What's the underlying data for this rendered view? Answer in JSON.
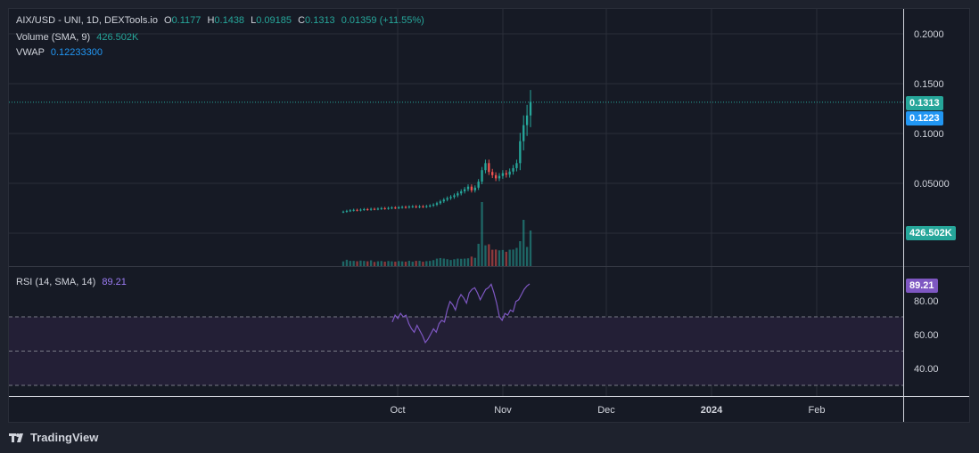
{
  "legend": {
    "symbol": "AIX/USD - UNI, 1D, DEXTools.io",
    "o_label": "O",
    "o_value": "0.1177",
    "h_label": "H",
    "h_value": "0.1438",
    "l_label": "L",
    "l_value": "0.09185",
    "c_label": "C",
    "c_value": "0.1313",
    "change": "0.01359 (+11.55%)",
    "volume_label": "Volume (SMA, 9)",
    "volume_value": "426.502K",
    "vwap_label": "VWAP",
    "vwap_value": "0.12233300",
    "rsi_label": "RSI (14, SMA, 14)",
    "rsi_value": "89.21"
  },
  "price_axis": {
    "ticks": [
      "0.2000",
      "0.1500",
      "0.1000",
      "0.05000"
    ]
  },
  "rsi_axis": {
    "ticks": [
      "80.00",
      "60.00",
      "40.00"
    ]
  },
  "time_axis": {
    "ticks": [
      "Oct",
      "Nov",
      "Dec",
      "2024",
      "Feb"
    ]
  },
  "tags": {
    "last_price": "0.1313",
    "vwap": "0.1223",
    "volume": "426.502K",
    "rsi": "89.21"
  },
  "branding": "TradingView",
  "colors": {
    "up": "#26a69a",
    "down": "#ef5350",
    "vwap": "#2196f3",
    "rsi": "#7e57c2",
    "background": "#161a25",
    "grid": "#2a2e39",
    "rsi_band": "#231f36"
  },
  "chart_data": [
    {
      "type": "candlestick",
      "title": "AIX/USD - UNI, 1D, DEXTools.io",
      "price_scale": [
        0.0,
        0.2
      ],
      "series": [
        {
          "name": "AIX/USD",
          "close": [
            0.0215,
            0.0223,
            0.0228,
            0.0233,
            0.0229,
            0.0235,
            0.024,
            0.0236,
            0.0243,
            0.0241,
            0.0245,
            0.025,
            0.0247,
            0.0252,
            0.0256,
            0.0253,
            0.0258,
            0.0262,
            0.0259,
            0.0265,
            0.0268,
            0.0262,
            0.0268,
            0.0265,
            0.027,
            0.0276,
            0.0285,
            0.03,
            0.0318,
            0.0335,
            0.035,
            0.0362,
            0.0378,
            0.0398,
            0.0418,
            0.044,
            0.0465,
            0.0428,
            0.0455,
            0.0515,
            0.063,
            0.07,
            0.0612,
            0.058,
            0.0548,
            0.0572,
            0.06,
            0.0585,
            0.0616,
            0.065,
            0.07,
            0.092,
            0.108,
            0.1177,
            0.1313
          ]
        }
      ],
      "last_price": 0.1313,
      "vwap": 0.122333
    },
    {
      "type": "bar",
      "title": "Volume (SMA, 9)",
      "last_value": "426.502K"
    },
    {
      "type": "line",
      "title": "RSI (14, SMA, 14)",
      "ylim": [
        30,
        100
      ],
      "bands": [
        70,
        50,
        30
      ],
      "series": [
        {
          "name": "RSI",
          "values": [
            67,
            71,
            69,
            72,
            70,
            71,
            66,
            63,
            61,
            65,
            62,
            59,
            55,
            57,
            60,
            63,
            61,
            66,
            68,
            67,
            74,
            79,
            77,
            74,
            80,
            83,
            81,
            78,
            84,
            86,
            87,
            84,
            80,
            83,
            86,
            87,
            89,
            84,
            78,
            70,
            68,
            72,
            71,
            74,
            73,
            79,
            80,
            83,
            86,
            88,
            89.21
          ]
        }
      ]
    }
  ]
}
